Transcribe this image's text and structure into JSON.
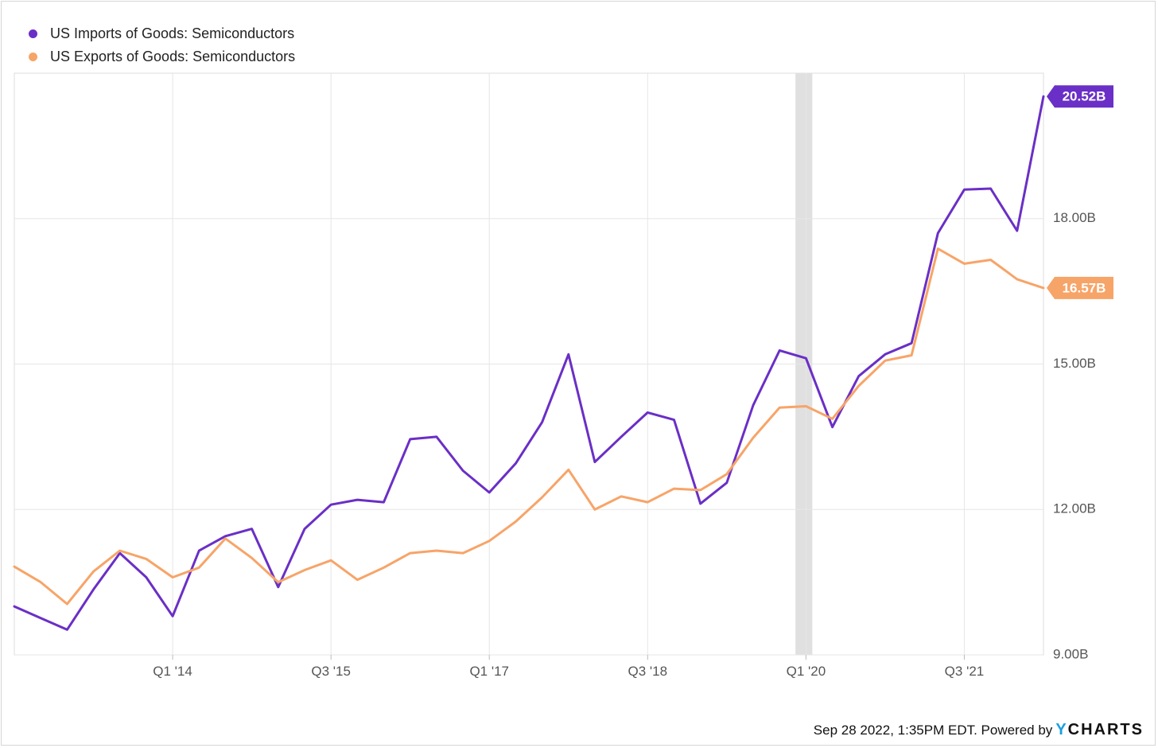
{
  "chart_data": {
    "type": "line",
    "y_unit_suffix": "B",
    "ylim": [
      9.0,
      21.0
    ],
    "yticks": [
      "9.00B",
      "12.00B",
      "15.00B",
      "18.00B"
    ],
    "ytick_values": [
      9.0,
      12.0,
      15.0,
      18.0
    ],
    "xticks": [
      "Q1 '14",
      "Q3 '15",
      "Q1 '17",
      "Q3 '18",
      "Q1 '20",
      "Q3 '21"
    ],
    "xtick_values": [
      2014.0,
      2015.5,
      2017.0,
      2018.5,
      2020.0,
      2021.5
    ],
    "xlim": [
      2012.5,
      2022.25
    ],
    "x": [
      2012.5,
      2012.75,
      2013.0,
      2013.25,
      2013.5,
      2013.75,
      2014.0,
      2014.25,
      2014.5,
      2014.75,
      2015.0,
      2015.25,
      2015.5,
      2015.75,
      2016.0,
      2016.25,
      2016.5,
      2016.75,
      2017.0,
      2017.25,
      2017.5,
      2017.75,
      2018.0,
      2018.25,
      2018.5,
      2018.75,
      2019.0,
      2019.25,
      2019.5,
      2019.75,
      2020.0,
      2020.25,
      2020.5,
      2020.75,
      2021.0,
      2021.25,
      2021.5,
      2021.75,
      2022.0,
      2022.25
    ],
    "series": [
      {
        "name": "US Imports of Goods: Semiconductors",
        "color": "#6a2fc6",
        "last_label": "20.52B",
        "values": [
          10.0,
          9.76,
          9.52,
          10.35,
          11.1,
          10.6,
          9.8,
          11.15,
          11.45,
          11.6,
          10.4,
          11.6,
          12.1,
          12.2,
          12.15,
          13.45,
          13.5,
          12.8,
          12.35,
          12.95,
          13.8,
          15.2,
          12.98,
          13.5,
          14.0,
          13.85,
          12.12,
          12.55,
          14.15,
          15.28,
          15.12,
          13.7,
          14.75,
          15.2,
          15.43,
          17.7,
          18.6,
          18.62,
          17.75,
          20.52
        ]
      },
      {
        "name": "US Exports of Goods: Semiconductors",
        "color": "#f7a468",
        "last_label": "16.57B",
        "values": [
          10.82,
          10.5,
          10.05,
          10.72,
          11.15,
          10.98,
          10.6,
          10.8,
          11.4,
          11.0,
          10.5,
          10.75,
          10.95,
          10.55,
          10.8,
          11.1,
          11.15,
          11.1,
          11.35,
          11.75,
          12.25,
          12.82,
          12.0,
          12.27,
          12.15,
          12.43,
          12.4,
          12.73,
          13.48,
          14.1,
          14.13,
          13.87,
          14.55,
          15.07,
          15.18,
          17.38,
          17.07,
          17.15,
          16.75,
          16.57
        ]
      }
    ],
    "shaded_region": [
      2019.9,
      2020.06
    ],
    "grid": true,
    "legend_position": "top-left"
  },
  "footer": {
    "timestamp": "Sep 28 2022, 1:35PM EDT. Powered by",
    "logo_y": "Y",
    "logo_rest": "CHARTS"
  }
}
